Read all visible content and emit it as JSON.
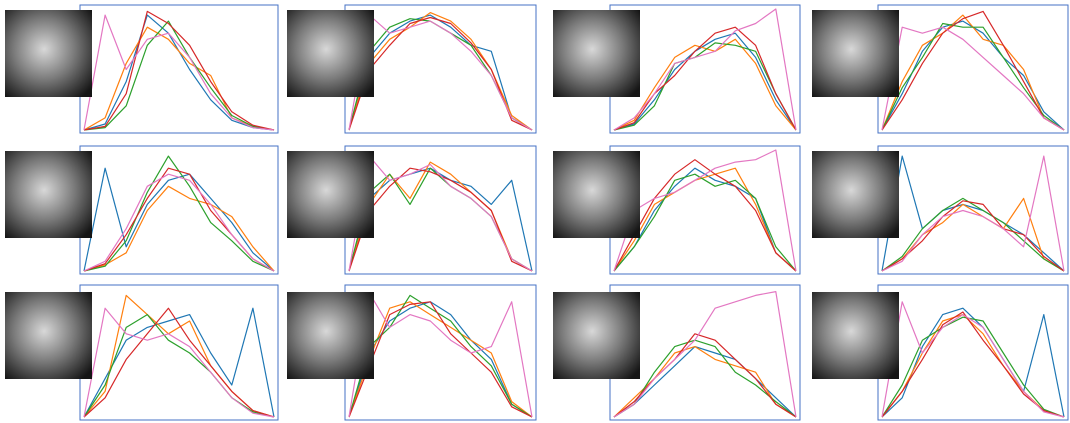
{
  "chart_data": [
    {
      "type": "line",
      "ylim": [
        0,
        1
      ],
      "series": [
        {
          "color": "#1f77b4",
          "values": [
            0,
            0.05,
            0.4,
            0.95,
            0.8,
            0.5,
            0.25,
            0.08,
            0.02,
            0
          ]
        },
        {
          "color": "#ff7f0e",
          "values": [
            0,
            0.1,
            0.55,
            0.85,
            0.75,
            0.55,
            0.45,
            0.1,
            0.03,
            0
          ]
        },
        {
          "color": "#2ca02c",
          "values": [
            0,
            0.02,
            0.2,
            0.7,
            0.9,
            0.6,
            0.35,
            0.12,
            0.03,
            0
          ]
        },
        {
          "color": "#d62728",
          "values": [
            0,
            0.03,
            0.3,
            0.98,
            0.88,
            0.7,
            0.4,
            0.15,
            0.04,
            0
          ]
        },
        {
          "color": "#e377c2",
          "values": [
            0,
            0.95,
            0.5,
            0.75,
            0.8,
            0.6,
            0.3,
            0.1,
            0.02,
            0
          ]
        }
      ]
    },
    {
      "type": "line",
      "ylim": [
        0,
        1
      ],
      "series": [
        {
          "color": "#1f77b4",
          "values": [
            0,
            0.6,
            0.8,
            0.9,
            0.95,
            0.85,
            0.7,
            0.65,
            0.1,
            0
          ]
        },
        {
          "color": "#ff7f0e",
          "values": [
            0,
            0.55,
            0.75,
            0.85,
            0.97,
            0.9,
            0.75,
            0.5,
            0.12,
            0
          ]
        },
        {
          "color": "#2ca02c",
          "values": [
            0,
            0.65,
            0.85,
            0.92,
            0.9,
            0.8,
            0.7,
            0.45,
            0.1,
            0
          ]
        },
        {
          "color": "#d62728",
          "values": [
            0,
            0.5,
            0.7,
            0.88,
            0.93,
            0.88,
            0.72,
            0.5,
            0.08,
            0
          ]
        },
        {
          "color": "#e377c2",
          "values": [
            0,
            0.95,
            0.8,
            0.85,
            0.9,
            0.8,
            0.65,
            0.45,
            0.1,
            0
          ]
        }
      ]
    },
    {
      "type": "line",
      "ylim": [
        0,
        1
      ],
      "series": [
        {
          "color": "#1f77b4",
          "values": [
            0,
            0.05,
            0.25,
            0.5,
            0.65,
            0.75,
            0.8,
            0.6,
            0.25,
            0
          ]
        },
        {
          "color": "#ff7f0e",
          "values": [
            0,
            0.08,
            0.35,
            0.6,
            0.7,
            0.65,
            0.75,
            0.55,
            0.2,
            0
          ]
        },
        {
          "color": "#2ca02c",
          "values": [
            0,
            0.04,
            0.2,
            0.55,
            0.6,
            0.72,
            0.7,
            0.65,
            0.3,
            0
          ]
        },
        {
          "color": "#d62728",
          "values": [
            0,
            0.06,
            0.3,
            0.45,
            0.65,
            0.8,
            0.85,
            0.7,
            0.3,
            0
          ]
        },
        {
          "color": "#e377c2",
          "values": [
            0,
            0.1,
            0.3,
            0.55,
            0.6,
            0.65,
            0.82,
            0.88,
            1,
            0
          ]
        }
      ]
    },
    {
      "type": "line",
      "ylim": [
        0,
        1
      ],
      "series": [
        {
          "color": "#1f77b4",
          "values": [
            0,
            0.3,
            0.65,
            0.85,
            0.9,
            0.8,
            0.6,
            0.45,
            0.15,
            0
          ]
        },
        {
          "color": "#ff7f0e",
          "values": [
            0,
            0.4,
            0.7,
            0.8,
            0.95,
            0.75,
            0.7,
            0.5,
            0.1,
            0
          ]
        },
        {
          "color": "#2ca02c",
          "values": [
            0,
            0.35,
            0.6,
            0.88,
            0.85,
            0.85,
            0.6,
            0.35,
            0.12,
            0
          ]
        },
        {
          "color": "#d62728",
          "values": [
            0,
            0.25,
            0.55,
            0.8,
            0.92,
            0.98,
            0.7,
            0.4,
            0.1,
            0
          ]
        },
        {
          "color": "#e377c2",
          "values": [
            0,
            0.85,
            0.8,
            0.85,
            0.75,
            0.6,
            0.45,
            0.3,
            0.1,
            0
          ]
        }
      ]
    },
    {
      "type": "line",
      "ylim": [
        0,
        1
      ],
      "series": [
        {
          "color": "#1f77b4",
          "values": [
            0,
            0.85,
            0.2,
            0.55,
            0.75,
            0.8,
            0.6,
            0.4,
            0.15,
            0
          ]
        },
        {
          "color": "#ff7f0e",
          "values": [
            0,
            0.05,
            0.15,
            0.5,
            0.7,
            0.6,
            0.55,
            0.45,
            0.2,
            0
          ]
        },
        {
          "color": "#2ca02c",
          "values": [
            0,
            0.04,
            0.25,
            0.65,
            0.95,
            0.7,
            0.4,
            0.25,
            0.08,
            0
          ]
        },
        {
          "color": "#d62728",
          "values": [
            0,
            0.06,
            0.3,
            0.6,
            0.85,
            0.8,
            0.5,
            0.3,
            0.1,
            0
          ]
        },
        {
          "color": "#e377c2",
          "values": [
            0,
            0.08,
            0.35,
            0.7,
            0.8,
            0.75,
            0.55,
            0.3,
            0.1,
            0
          ]
        }
      ]
    },
    {
      "type": "line",
      "ylim": [
        0,
        1
      ],
      "series": [
        {
          "color": "#1f77b4",
          "values": [
            0,
            0.6,
            0.75,
            0.8,
            0.85,
            0.75,
            0.7,
            0.55,
            0.75,
            0
          ]
        },
        {
          "color": "#ff7f0e",
          "values": [
            0,
            0.55,
            0.8,
            0.6,
            0.9,
            0.8,
            0.65,
            0.5,
            0.1,
            0
          ]
        },
        {
          "color": "#2ca02c",
          "values": [
            0,
            0.65,
            0.8,
            0.55,
            0.85,
            0.7,
            0.6,
            0.45,
            0.1,
            0
          ]
        },
        {
          "color": "#d62728",
          "values": [
            0,
            0.5,
            0.7,
            0.85,
            0.82,
            0.75,
            0.65,
            0.5,
            0.08,
            0
          ]
        },
        {
          "color": "#e377c2",
          "values": [
            0,
            0.95,
            0.75,
            0.8,
            0.88,
            0.7,
            0.6,
            0.45,
            0.1,
            0
          ]
        }
      ]
    },
    {
      "type": "line",
      "ylim": [
        0,
        1
      ],
      "series": [
        {
          "color": "#1f77b4",
          "values": [
            0,
            0.2,
            0.5,
            0.7,
            0.85,
            0.75,
            0.7,
            0.6,
            0.15,
            0
          ]
        },
        {
          "color": "#ff7f0e",
          "values": [
            0,
            0.25,
            0.55,
            0.65,
            0.75,
            0.8,
            0.85,
            0.55,
            0.15,
            0
          ]
        },
        {
          "color": "#2ca02c",
          "values": [
            0,
            0.2,
            0.45,
            0.75,
            0.8,
            0.7,
            0.75,
            0.6,
            0.2,
            0
          ]
        },
        {
          "color": "#d62728",
          "values": [
            0,
            0.3,
            0.6,
            0.8,
            0.92,
            0.8,
            0.7,
            0.5,
            0.15,
            0
          ]
        },
        {
          "color": "#e377c2",
          "values": [
            0,
            0.5,
            0.6,
            0.65,
            0.75,
            0.85,
            0.9,
            0.92,
            1,
            0
          ]
        }
      ]
    },
    {
      "type": "line",
      "ylim": [
        0,
        1
      ],
      "series": [
        {
          "color": "#1f77b4",
          "values": [
            0,
            0.95,
            0.35,
            0.5,
            0.55,
            0.5,
            0.4,
            0.3,
            0.15,
            0
          ]
        },
        {
          "color": "#ff7f0e",
          "values": [
            0,
            0.1,
            0.3,
            0.4,
            0.55,
            0.45,
            0.35,
            0.6,
            0.1,
            0
          ]
        },
        {
          "color": "#2ca02c",
          "values": [
            0,
            0.12,
            0.35,
            0.5,
            0.6,
            0.5,
            0.4,
            0.25,
            0.1,
            0
          ]
        },
        {
          "color": "#d62728",
          "values": [
            0,
            0.1,
            0.25,
            0.45,
            0.58,
            0.55,
            0.35,
            0.3,
            0.12,
            0
          ]
        },
        {
          "color": "#e377c2",
          "values": [
            0,
            0.08,
            0.3,
            0.45,
            0.5,
            0.45,
            0.35,
            0.2,
            0.95,
            0
          ]
        }
      ]
    },
    {
      "type": "line",
      "ylim": [
        0,
        1
      ],
      "series": [
        {
          "color": "#1f77b4",
          "values": [
            0,
            0.3,
            0.6,
            0.7,
            0.75,
            0.8,
            0.5,
            0.25,
            0.85,
            0
          ]
        },
        {
          "color": "#ff7f0e",
          "values": [
            0,
            0.2,
            0.95,
            0.8,
            0.65,
            0.75,
            0.4,
            0.2,
            0.05,
            0
          ]
        },
        {
          "color": "#2ca02c",
          "values": [
            0,
            0.25,
            0.7,
            0.8,
            0.6,
            0.5,
            0.35,
            0.15,
            0.04,
            0
          ]
        },
        {
          "color": "#d62728",
          "values": [
            0,
            0.15,
            0.45,
            0.65,
            0.85,
            0.6,
            0.4,
            0.2,
            0.05,
            0
          ]
        },
        {
          "color": "#e377c2",
          "values": [
            0,
            0.85,
            0.65,
            0.6,
            0.65,
            0.55,
            0.35,
            0.15,
            0.03,
            0
          ]
        }
      ]
    },
    {
      "type": "line",
      "ylim": [
        0,
        1
      ],
      "series": [
        {
          "color": "#1f77b4",
          "values": [
            0,
            0.5,
            0.75,
            0.85,
            0.9,
            0.8,
            0.6,
            0.45,
            0.1,
            0
          ]
        },
        {
          "color": "#ff7f0e",
          "values": [
            0,
            0.45,
            0.85,
            0.9,
            0.8,
            0.7,
            0.6,
            0.5,
            0.12,
            0
          ]
        },
        {
          "color": "#2ca02c",
          "values": [
            0,
            0.55,
            0.7,
            0.95,
            0.85,
            0.75,
            0.55,
            0.4,
            0.1,
            0
          ]
        },
        {
          "color": "#d62728",
          "values": [
            0,
            0.4,
            0.8,
            0.88,
            0.9,
            0.65,
            0.5,
            0.35,
            0.08,
            0
          ]
        },
        {
          "color": "#e377c2",
          "values": [
            0,
            0.97,
            0.7,
            0.8,
            0.75,
            0.6,
            0.5,
            0.55,
            0.9,
            0
          ]
        }
      ]
    },
    {
      "type": "line",
      "ylim": [
        0,
        1
      ],
      "series": [
        {
          "color": "#1f77b4",
          "values": [
            0,
            0.1,
            0.25,
            0.4,
            0.55,
            0.5,
            0.45,
            0.3,
            0.15,
            0
          ]
        },
        {
          "color": "#ff7f0e",
          "values": [
            0,
            0.15,
            0.3,
            0.5,
            0.55,
            0.45,
            0.4,
            0.35,
            0.1,
            0
          ]
        },
        {
          "color": "#2ca02c",
          "values": [
            0,
            0.1,
            0.35,
            0.55,
            0.6,
            0.55,
            0.35,
            0.25,
            0.12,
            0
          ]
        },
        {
          "color": "#d62728",
          "values": [
            0,
            0.12,
            0.3,
            0.45,
            0.65,
            0.6,
            0.45,
            0.3,
            0.1,
            0
          ]
        },
        {
          "color": "#e377c2",
          "values": [
            0,
            0.1,
            0.3,
            0.45,
            0.6,
            0.85,
            0.9,
            0.95,
            0.98,
            0
          ]
        }
      ]
    },
    {
      "type": "line",
      "ylim": [
        0,
        1
      ],
      "series": [
        {
          "color": "#1f77b4",
          "values": [
            0,
            0.15,
            0.55,
            0.8,
            0.85,
            0.7,
            0.45,
            0.2,
            0.8,
            0
          ]
        },
        {
          "color": "#ff7f0e",
          "values": [
            0,
            0.2,
            0.5,
            0.75,
            0.8,
            0.65,
            0.4,
            0.2,
            0.05,
            0
          ]
        },
        {
          "color": "#2ca02c",
          "values": [
            0,
            0.25,
            0.6,
            0.7,
            0.78,
            0.75,
            0.5,
            0.25,
            0.06,
            0
          ]
        },
        {
          "color": "#d62728",
          "values": [
            0,
            0.2,
            0.45,
            0.72,
            0.82,
            0.6,
            0.4,
            0.18,
            0.05,
            0
          ]
        },
        {
          "color": "#e377c2",
          "values": [
            0,
            0.9,
            0.5,
            0.7,
            0.8,
            0.7,
            0.45,
            0.2,
            0.04,
            0
          ]
        }
      ]
    }
  ]
}
